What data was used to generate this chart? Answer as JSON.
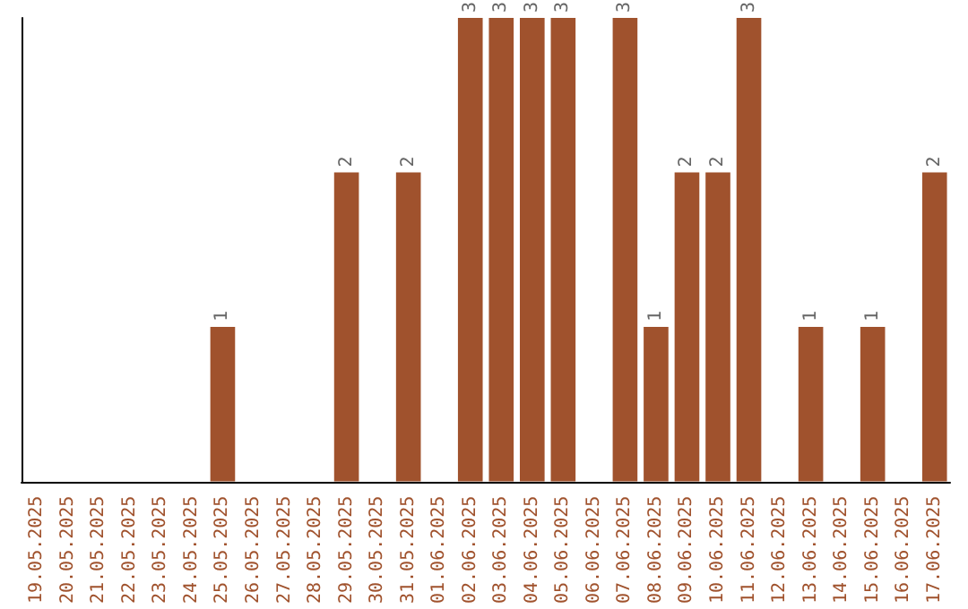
{
  "chart_data": {
    "type": "bar",
    "categories": [
      "19.05.2025",
      "20.05.2025",
      "21.05.2025",
      "22.05.2025",
      "23.05.2025",
      "24.05.2025",
      "25.05.2025",
      "26.05.2025",
      "27.05.2025",
      "28.05.2025",
      "29.05.2025",
      "30.05.2025",
      "31.05.2025",
      "01.06.2025",
      "02.06.2025",
      "03.06.2025",
      "04.06.2025",
      "05.06.2025",
      "06.06.2025",
      "07.06.2025",
      "08.06.2025",
      "09.06.2025",
      "10.06.2025",
      "11.06.2025",
      "12.06.2025",
      "13.06.2025",
      "14.06.2025",
      "15.06.2025",
      "16.06.2025",
      "17.06.2025"
    ],
    "values": [
      0,
      0,
      0,
      0,
      0,
      0,
      1,
      0,
      0,
      0,
      2,
      0,
      2,
      0,
      3,
      3,
      3,
      3,
      0,
      3,
      1,
      2,
      2,
      3,
      0,
      1,
      0,
      1,
      0,
      2
    ],
    "value_labels": [
      null,
      null,
      null,
      null,
      null,
      null,
      "1",
      null,
      null,
      null,
      "2",
      null,
      "2",
      null,
      "3",
      "3",
      "3",
      "3",
      null,
      "3",
      "1",
      "2",
      "2",
      "3",
      null,
      "1",
      null,
      "1",
      null,
      "2"
    ],
    "color": "#a0522d",
    "tick_labels": "x"
  }
}
